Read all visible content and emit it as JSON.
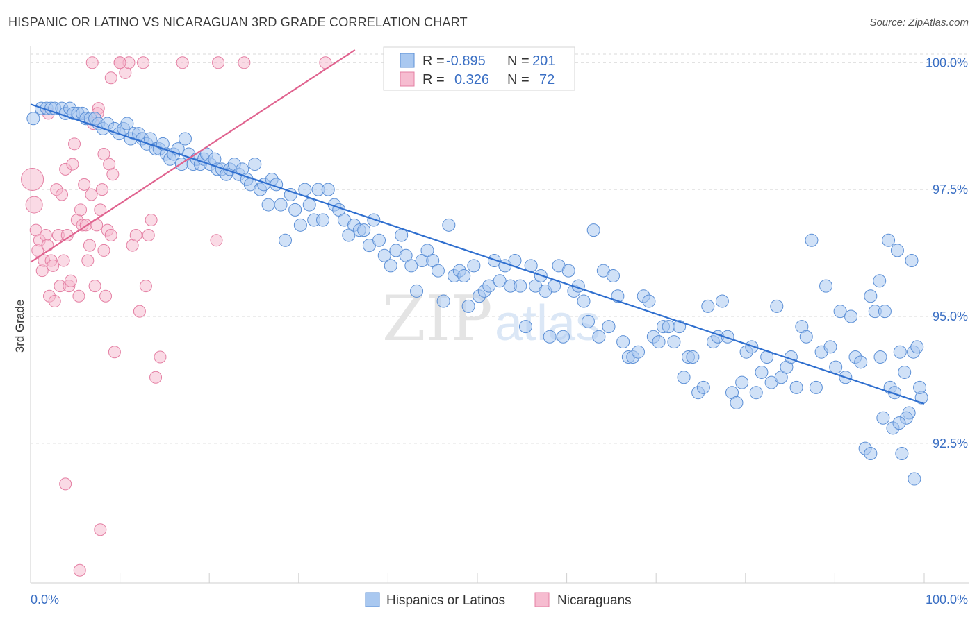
{
  "title": "HISPANIC OR LATINO VS NICARAGUAN 3RD GRADE CORRELATION CHART",
  "source": "Source: ZipAtlas.com",
  "watermark": {
    "zip": "ZIP",
    "atlas": "atlas"
  },
  "colors": {
    "blue_fill": "#a9c8f0",
    "blue_stroke": "#5b8fd6",
    "blue_line": "#2f6fcf",
    "pink_fill": "#f6bcd0",
    "pink_stroke": "#e47fa3",
    "pink_line": "#e0638f",
    "tick_text": "#3a6fc4",
    "grid": "#d8d8d8"
  },
  "legend_top": {
    "rows": [
      {
        "r_label": "R =",
        "r_value": "-0.895",
        "n_label": "N =",
        "n_value": "201",
        "series": "blue"
      },
      {
        "r_label": "R =",
        "r_value": "0.326",
        "n_label": "N =",
        "n_value": "72",
        "series": "pink"
      }
    ]
  },
  "legend_bottom": [
    "Hispanics or Latinos",
    "Nicaraguans"
  ],
  "chart_data": {
    "type": "scatter",
    "title": "HISPANIC OR LATINO VS NICARAGUAN 3RD GRADE CORRELATION CHART",
    "xlabel": "",
    "ylabel": "3rd Grade",
    "xlim": [
      0,
      100
    ],
    "ylim": [
      89.75,
      100.25
    ],
    "x_tick_labels": [
      "0.0%",
      "100.0%"
    ],
    "y_ticks": [
      100.0,
      97.5,
      95.0,
      92.5
    ],
    "y_tick_labels": [
      "100.0%",
      "97.5%",
      "95.0%",
      "92.5%"
    ],
    "grid": true,
    "legend_position": "top-center",
    "series": [
      {
        "name": "Hispanics or Latinos",
        "color": "#a9c8f0",
        "r": -0.895,
        "n": 201,
        "trend": {
          "x": [
            0,
            100
          ],
          "y": [
            99.18,
            93.28
          ]
        },
        "points": [
          [
            0.3,
            98.9
          ],
          [
            1.2,
            99.1
          ],
          [
            1.8,
            99.1
          ],
          [
            2.3,
            99.1
          ],
          [
            2.7,
            99.1
          ],
          [
            3.5,
            99.1
          ],
          [
            3.9,
            99.0
          ],
          [
            4.4,
            99.1
          ],
          [
            4.8,
            99.0
          ],
          [
            5.3,
            99.0
          ],
          [
            5.8,
            99.0
          ],
          [
            6.2,
            98.9
          ],
          [
            6.7,
            98.9
          ],
          [
            7.2,
            98.9
          ],
          [
            7.6,
            98.8
          ],
          [
            8.1,
            98.7
          ],
          [
            8.6,
            98.8
          ],
          [
            9.4,
            98.7
          ],
          [
            9.9,
            98.6
          ],
          [
            10.4,
            98.7
          ],
          [
            10.8,
            98.8
          ],
          [
            11.2,
            98.5
          ],
          [
            11.6,
            98.6
          ],
          [
            12.1,
            98.6
          ],
          [
            12.5,
            98.5
          ],
          [
            13.0,
            98.4
          ],
          [
            13.4,
            98.5
          ],
          [
            14.0,
            98.3
          ],
          [
            14.4,
            98.3
          ],
          [
            14.8,
            98.4
          ],
          [
            15.2,
            98.2
          ],
          [
            15.6,
            98.1
          ],
          [
            16.0,
            98.2
          ],
          [
            16.5,
            98.3
          ],
          [
            16.9,
            98.0
          ],
          [
            17.3,
            98.5
          ],
          [
            17.7,
            98.2
          ],
          [
            18.2,
            98.0
          ],
          [
            18.6,
            98.1
          ],
          [
            19.0,
            98.0
          ],
          [
            19.4,
            98.1
          ],
          [
            19.7,
            98.2
          ],
          [
            20.1,
            98.0
          ],
          [
            20.6,
            98.1
          ],
          [
            20.9,
            97.9
          ],
          [
            21.4,
            97.9
          ],
          [
            21.9,
            97.8
          ],
          [
            22.3,
            97.9
          ],
          [
            22.8,
            98.0
          ],
          [
            23.3,
            97.8
          ],
          [
            23.7,
            97.9
          ],
          [
            24.2,
            97.7
          ],
          [
            24.6,
            97.6
          ],
          [
            25.1,
            98.0
          ],
          [
            25.7,
            97.5
          ],
          [
            26.1,
            97.6
          ],
          [
            26.6,
            97.2
          ],
          [
            27.0,
            97.7
          ],
          [
            27.5,
            97.6
          ],
          [
            28.0,
            97.2
          ],
          [
            28.5,
            96.5
          ],
          [
            29.1,
            97.4
          ],
          [
            29.6,
            97.1
          ],
          [
            30.2,
            96.8
          ],
          [
            30.7,
            97.5
          ],
          [
            31.2,
            97.2
          ],
          [
            31.7,
            96.9
          ],
          [
            32.2,
            97.5
          ],
          [
            32.7,
            96.9
          ],
          [
            33.3,
            97.5
          ],
          [
            34.0,
            97.2
          ],
          [
            34.5,
            97.1
          ],
          [
            35.1,
            96.9
          ],
          [
            35.6,
            96.6
          ],
          [
            36.2,
            96.8
          ],
          [
            36.8,
            96.7
          ],
          [
            37.3,
            96.7
          ],
          [
            37.9,
            96.4
          ],
          [
            38.4,
            96.9
          ],
          [
            39.0,
            96.5
          ],
          [
            39.6,
            96.2
          ],
          [
            40.3,
            96.0
          ],
          [
            40.9,
            96.3
          ],
          [
            41.5,
            96.6
          ],
          [
            42.0,
            96.2
          ],
          [
            42.6,
            96.0
          ],
          [
            43.2,
            95.5
          ],
          [
            43.8,
            96.1
          ],
          [
            44.4,
            96.3
          ],
          [
            45.0,
            96.1
          ],
          [
            45.6,
            95.9
          ],
          [
            46.2,
            95.3
          ],
          [
            46.8,
            96.8
          ],
          [
            47.4,
            95.8
          ],
          [
            48.0,
            95.9
          ],
          [
            48.5,
            95.8
          ],
          [
            49.0,
            95.2
          ],
          [
            49.6,
            96.0
          ],
          [
            50.2,
            95.4
          ],
          [
            50.8,
            95.5
          ],
          [
            51.3,
            95.6
          ],
          [
            51.9,
            96.1
          ],
          [
            52.5,
            95.7
          ],
          [
            53.1,
            96.0
          ],
          [
            53.7,
            95.6
          ],
          [
            54.2,
            96.1
          ],
          [
            54.8,
            95.6
          ],
          [
            55.4,
            94.8
          ],
          [
            56.0,
            96.0
          ],
          [
            56.5,
            95.6
          ],
          [
            57.1,
            95.8
          ],
          [
            57.6,
            95.5
          ],
          [
            58.1,
            94.6
          ],
          [
            58.6,
            95.6
          ],
          [
            59.1,
            96.0
          ],
          [
            59.6,
            94.6
          ],
          [
            60.2,
            95.9
          ],
          [
            60.8,
            95.5
          ],
          [
            61.3,
            95.6
          ],
          [
            61.9,
            95.3
          ],
          [
            62.4,
            94.9
          ],
          [
            63.0,
            96.7
          ],
          [
            63.6,
            94.6
          ],
          [
            64.1,
            95.9
          ],
          [
            64.7,
            94.8
          ],
          [
            65.2,
            95.8
          ],
          [
            65.7,
            95.4
          ],
          [
            66.3,
            94.5
          ],
          [
            66.9,
            94.2
          ],
          [
            67.4,
            94.2
          ],
          [
            68.0,
            94.3
          ],
          [
            68.6,
            95.4
          ],
          [
            69.2,
            95.3
          ],
          [
            69.7,
            94.6
          ],
          [
            70.3,
            94.5
          ],
          [
            70.8,
            94.8
          ],
          [
            71.4,
            94.8
          ],
          [
            72.0,
            94.5
          ],
          [
            72.6,
            94.8
          ],
          [
            73.1,
            93.8
          ],
          [
            73.6,
            94.2
          ],
          [
            74.1,
            94.2
          ],
          [
            74.7,
            93.5
          ],
          [
            75.3,
            93.6
          ],
          [
            75.8,
            95.2
          ],
          [
            76.4,
            94.5
          ],
          [
            76.9,
            94.6
          ],
          [
            77.4,
            95.3
          ],
          [
            78.0,
            94.6
          ],
          [
            78.5,
            93.5
          ],
          [
            79.0,
            93.3
          ],
          [
            79.6,
            93.7
          ],
          [
            80.1,
            94.3
          ],
          [
            80.7,
            94.4
          ],
          [
            81.2,
            93.5
          ],
          [
            81.8,
            93.9
          ],
          [
            82.4,
            94.2
          ],
          [
            82.9,
            93.7
          ],
          [
            83.5,
            95.2
          ],
          [
            84.0,
            93.8
          ],
          [
            84.6,
            94.0
          ],
          [
            85.1,
            94.2
          ],
          [
            85.7,
            93.6
          ],
          [
            86.3,
            94.8
          ],
          [
            86.8,
            94.6
          ],
          [
            87.4,
            96.5
          ],
          [
            87.9,
            93.6
          ],
          [
            88.5,
            94.3
          ],
          [
            89.0,
            95.6
          ],
          [
            89.5,
            94.4
          ],
          [
            90.1,
            94.0
          ],
          [
            90.6,
            95.1
          ],
          [
            91.2,
            93.8
          ],
          [
            91.8,
            95.0
          ],
          [
            92.3,
            94.2
          ],
          [
            92.9,
            94.1
          ],
          [
            93.4,
            92.4
          ],
          [
            94.0,
            92.3
          ],
          [
            94.5,
            95.1
          ],
          [
            95.1,
            94.2
          ],
          [
            95.6,
            95.1
          ],
          [
            96.2,
            93.6
          ],
          [
            96.7,
            93.5
          ],
          [
            97.3,
            94.3
          ],
          [
            97.8,
            93.9
          ],
          [
            98.3,
            93.1
          ],
          [
            98.8,
            94.3
          ],
          [
            99.2,
            94.4
          ],
          [
            99.7,
            93.4
          ],
          [
            97.0,
            96.3
          ],
          [
            96.0,
            96.5
          ],
          [
            95.0,
            95.7
          ],
          [
            94.0,
            95.4
          ],
          [
            96.5,
            92.8
          ],
          [
            97.5,
            92.3
          ],
          [
            98.0,
            93.0
          ],
          [
            99.5,
            93.6
          ],
          [
            98.9,
            91.8
          ],
          [
            97.2,
            92.9
          ],
          [
            95.4,
            93.0
          ],
          [
            98.6,
            96.1
          ]
        ]
      },
      {
        "name": "Nicaraguans",
        "color": "#f6bcd0",
        "r": 0.326,
        "n": 72,
        "trend": {
          "x": [
            0,
            36.3
          ],
          "y": [
            96.07,
            100.25
          ]
        },
        "points": [
          [
            0.2,
            97.7
          ],
          [
            0.4,
            97.2
          ],
          [
            0.6,
            96.7
          ],
          [
            0.8,
            96.3
          ],
          [
            1.0,
            96.5
          ],
          [
            1.3,
            95.9
          ],
          [
            1.5,
            96.1
          ],
          [
            1.7,
            96.6
          ],
          [
            1.9,
            96.4
          ],
          [
            2.1,
            95.4
          ],
          [
            2.3,
            96.1
          ],
          [
            2.5,
            96.0
          ],
          [
            2.7,
            95.3
          ],
          [
            2.9,
            97.5
          ],
          [
            3.1,
            96.6
          ],
          [
            3.3,
            95.6
          ],
          [
            3.5,
            97.4
          ],
          [
            3.7,
            96.1
          ],
          [
            3.9,
            97.9
          ],
          [
            4.1,
            96.6
          ],
          [
            4.3,
            95.6
          ],
          [
            4.5,
            95.7
          ],
          [
            4.7,
            98.0
          ],
          [
            4.9,
            98.4
          ],
          [
            5.2,
            96.9
          ],
          [
            5.4,
            95.4
          ],
          [
            5.6,
            97.1
          ],
          [
            5.8,
            96.8
          ],
          [
            6.0,
            97.6
          ],
          [
            6.2,
            96.8
          ],
          [
            6.4,
            96.1
          ],
          [
            6.6,
            96.4
          ],
          [
            6.8,
            97.4
          ],
          [
            7.0,
            98.8
          ],
          [
            7.2,
            95.6
          ],
          [
            7.4,
            96.8
          ],
          [
            7.6,
            99.1
          ],
          [
            7.8,
            97.1
          ],
          [
            8.0,
            97.5
          ],
          [
            8.2,
            96.3
          ],
          [
            8.4,
            95.4
          ],
          [
            8.6,
            96.7
          ],
          [
            8.8,
            98.0
          ],
          [
            9.0,
            96.6
          ],
          [
            9.2,
            97.8
          ],
          [
            9.4,
            94.3
          ],
          [
            10.0,
            100.0
          ],
          [
            10.6,
            99.8
          ],
          [
            11.0,
            100.0
          ],
          [
            11.4,
            96.4
          ],
          [
            11.8,
            96.6
          ],
          [
            12.2,
            95.1
          ],
          [
            12.6,
            100.0
          ],
          [
            12.9,
            95.6
          ],
          [
            13.2,
            96.6
          ],
          [
            13.5,
            96.9
          ],
          [
            14.0,
            93.8
          ],
          [
            14.5,
            94.2
          ],
          [
            17.0,
            100.0
          ],
          [
            20.8,
            96.5
          ],
          [
            21.0,
            100.0
          ],
          [
            23.9,
            100.0
          ],
          [
            6.9,
            100.0
          ],
          [
            9.0,
            99.7
          ],
          [
            7.5,
            99.0
          ],
          [
            8.2,
            98.2
          ],
          [
            2.0,
            99.0
          ],
          [
            3.9,
            91.7
          ],
          [
            7.8,
            90.8
          ],
          [
            5.5,
            90.0
          ],
          [
            10.0,
            100.0
          ],
          [
            33.0,
            100.0
          ]
        ]
      }
    ]
  }
}
